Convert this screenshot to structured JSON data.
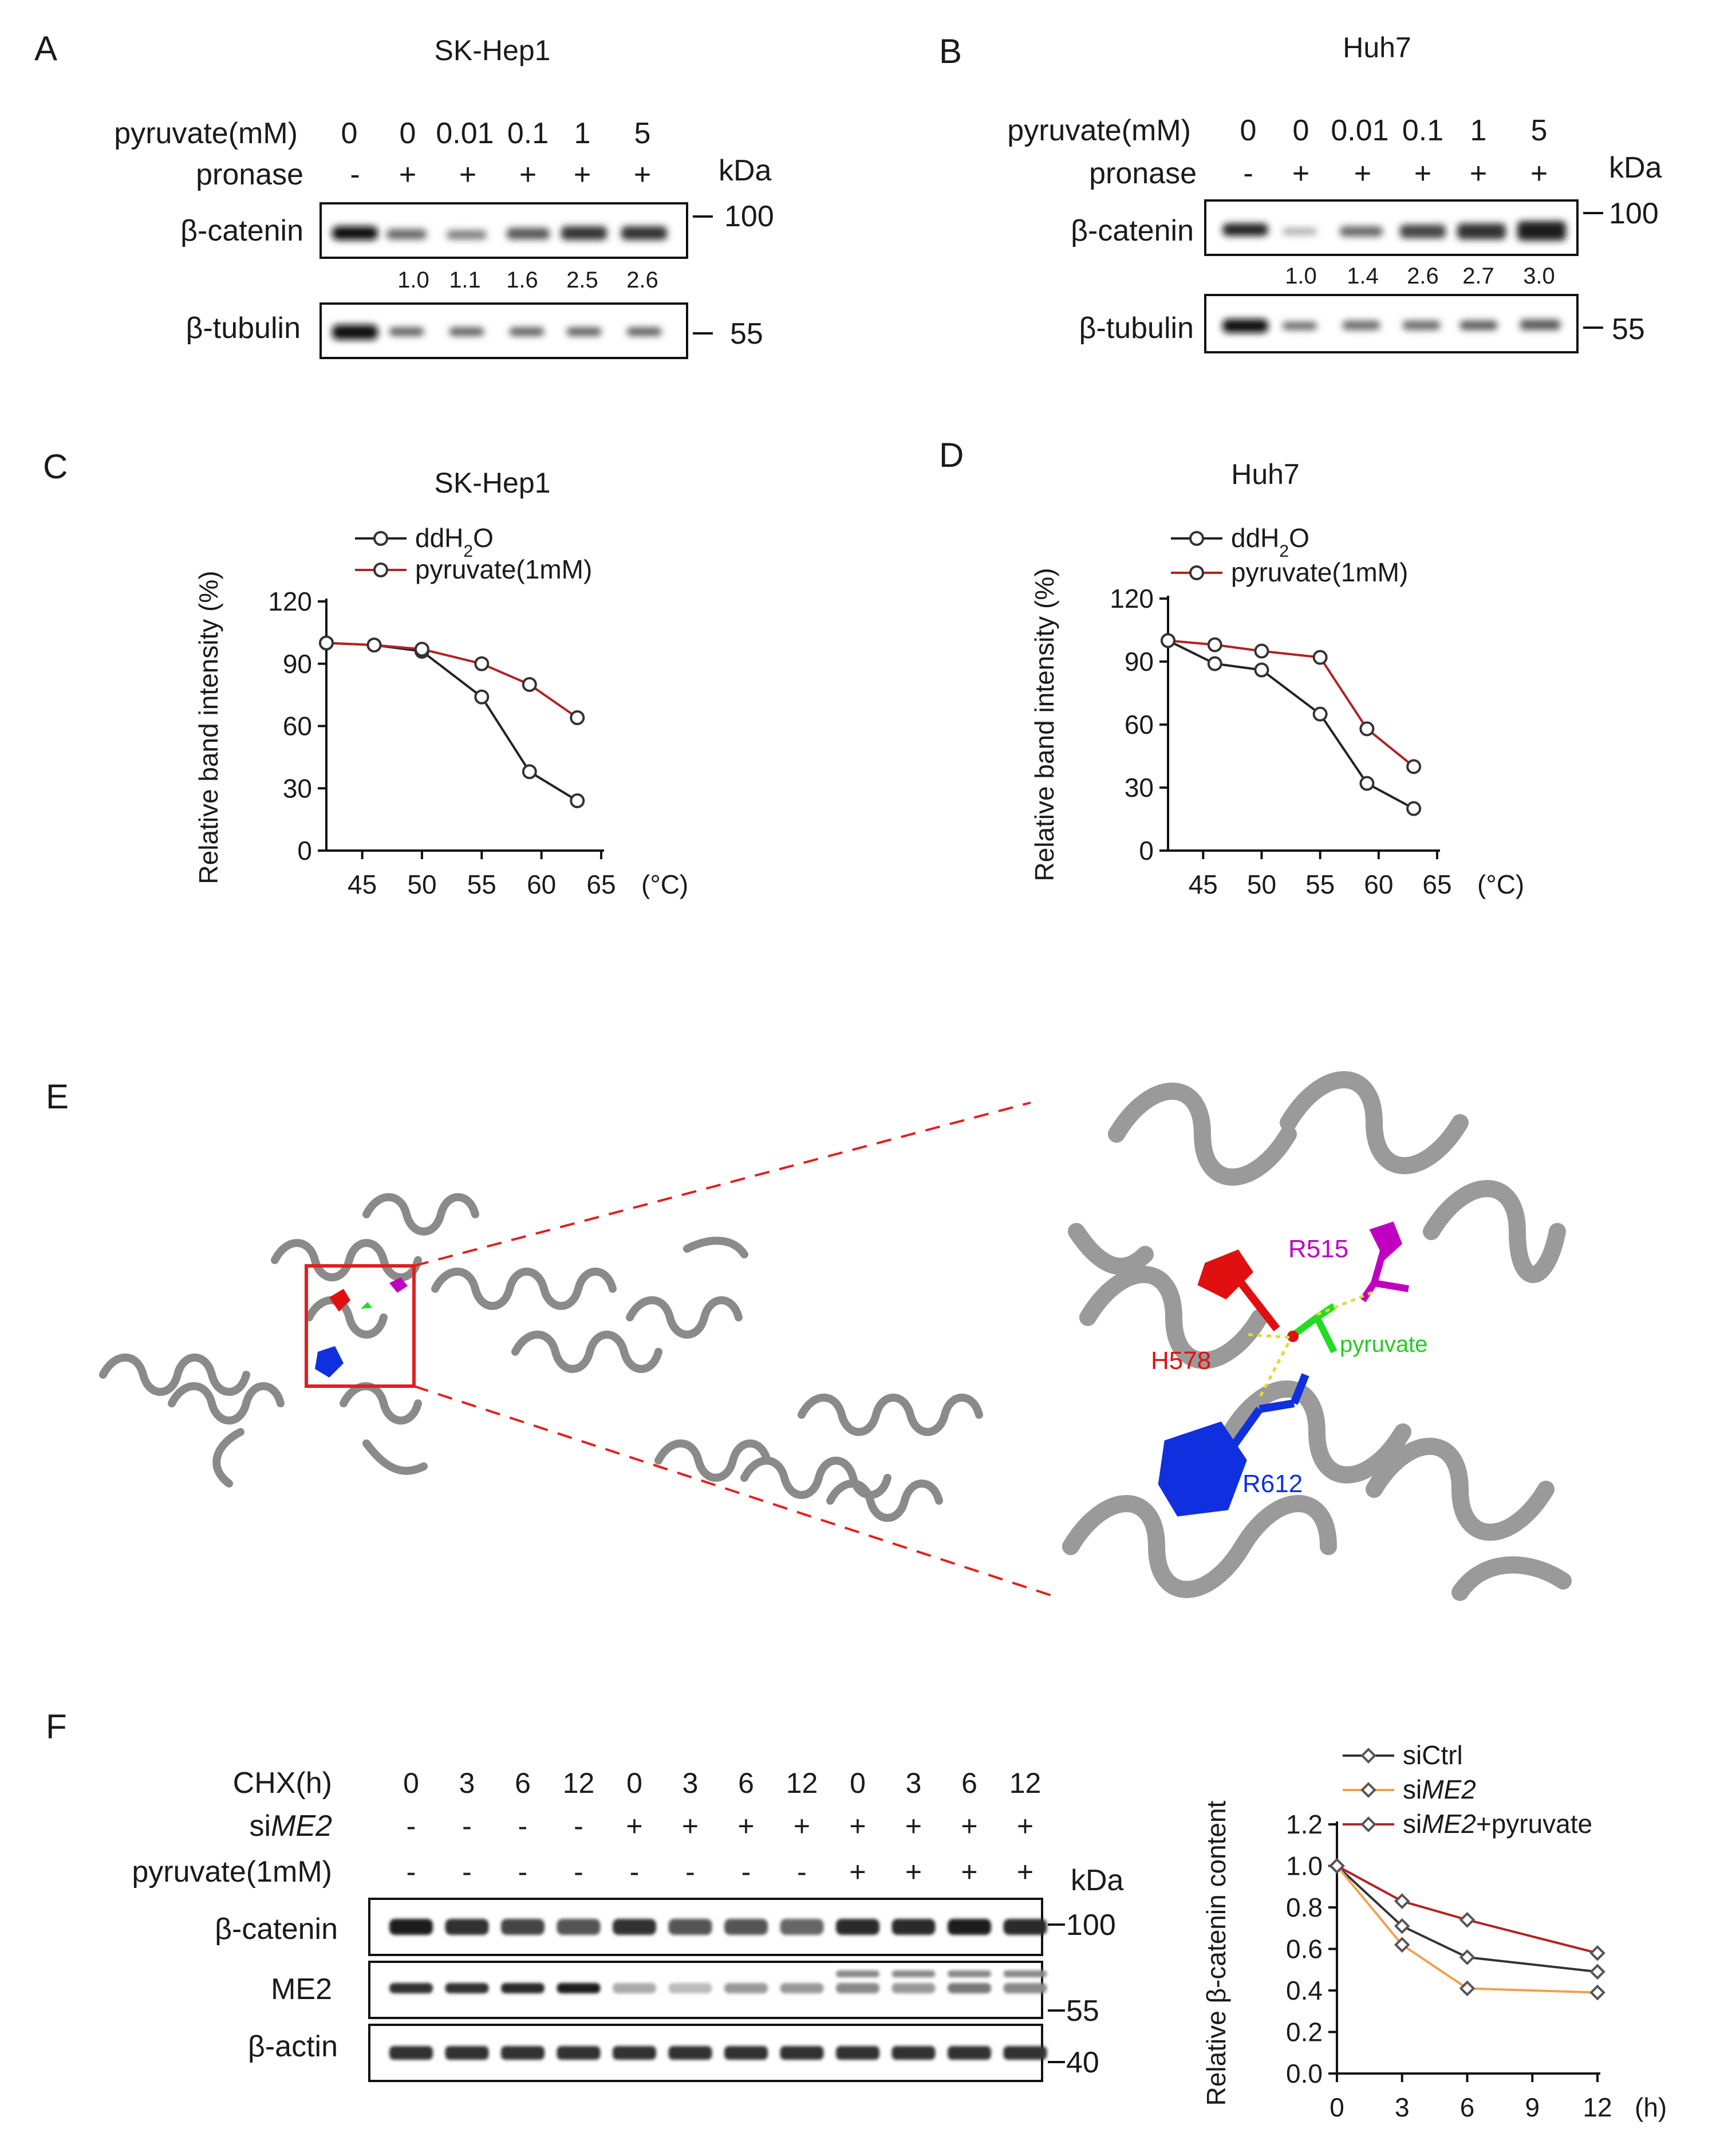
{
  "panels": {
    "A": {
      "letter": "A",
      "title": "SK-Hep1",
      "row_labels": [
        "pyruvate(mM)",
        "pronase"
      ],
      "pyruvate_values": [
        "0",
        "0",
        "0.01",
        "0.1",
        "1",
        "5"
      ],
      "pronase_values": [
        "-",
        "+",
        "+",
        "+",
        "+",
        "+"
      ],
      "kda": "kDa",
      "blots": [
        "β-catenin",
        "β-tubulin"
      ],
      "quant": [
        "1.0",
        "1.1",
        "1.6",
        "2.5",
        "2.6"
      ],
      "markers": [
        "100",
        "55"
      ]
    },
    "B": {
      "letter": "B",
      "title": "Huh7",
      "row_labels": [
        "pyruvate(mM)",
        "pronase"
      ],
      "pyruvate_values": [
        "0",
        "0",
        "0.01",
        "0.1",
        "1",
        "5"
      ],
      "pronase_values": [
        "-",
        "+",
        "+",
        "+",
        "+",
        "+"
      ],
      "kda": "kDa",
      "blots": [
        "β-catenin",
        "β-tubulin"
      ],
      "quant": [
        "1.0",
        "1.4",
        "2.6",
        "2.7",
        "3.0"
      ],
      "markers": [
        "100",
        "55"
      ]
    },
    "C": {
      "letter": "C",
      "title": "SK-Hep1"
    },
    "D": {
      "letter": "D",
      "title": "Huh7"
    },
    "E": {
      "letter": "E",
      "residues": [
        "R515",
        "H578",
        "R612"
      ],
      "ligand": "pyruvate",
      "colors": {
        "R515": "#c000c0",
        "H578": "#e01010",
        "R612": "#1030e0",
        "pyruvate": "#22dd22",
        "zoom_box": "#e02020"
      }
    },
    "F": {
      "letter": "F",
      "row_labels": [
        "CHX(h)",
        "siME2",
        "pyruvate(1mM)"
      ],
      "chx_values": [
        "0",
        "3",
        "6",
        "12",
        "0",
        "3",
        "6",
        "12",
        "0",
        "3",
        "6",
        "12"
      ],
      "sime2_values": [
        "-",
        "-",
        "-",
        "-",
        "+",
        "+",
        "+",
        "+",
        "+",
        "+",
        "+",
        "+"
      ],
      "pyr_values": [
        "-",
        "-",
        "-",
        "-",
        "-",
        "-",
        "-",
        "-",
        "+",
        "+",
        "+",
        "+"
      ],
      "kda": "kDa",
      "blots": [
        "β-catenin",
        "ME2",
        "β-actin"
      ],
      "markers": [
        "100",
        "55",
        "40"
      ]
    }
  },
  "chart_data": [
    {
      "id": "C",
      "type": "line",
      "title": "SK-Hep1",
      "xlabel": "(°C)",
      "ylabel": "Relative band intensity (%)",
      "xlim": [
        42,
        65
      ],
      "ylim": [
        0,
        120
      ],
      "xticks": [
        45,
        50,
        55,
        60,
        65
      ],
      "yticks": [
        0,
        30,
        60,
        90,
        120
      ],
      "legend_position": "top",
      "series": [
        {
          "name": "ddH2O",
          "color": "#222222",
          "x": [
            42,
            46,
            50,
            55,
            59,
            63
          ],
          "y": [
            100,
            99,
            96,
            74,
            38,
            24
          ]
        },
        {
          "name": "pyruvate(1mM)",
          "color": "#b22222",
          "x": [
            42,
            46,
            50,
            55,
            59,
            63
          ],
          "y": [
            100,
            99,
            97,
            90,
            80,
            64
          ]
        }
      ]
    },
    {
      "id": "D",
      "type": "line",
      "title": "Huh7",
      "xlabel": "(°C)",
      "ylabel": "Relative band intensity (%)",
      "xlim": [
        42,
        65
      ],
      "ylim": [
        0,
        120
      ],
      "xticks": [
        45,
        50,
        55,
        60,
        65
      ],
      "yticks": [
        0,
        30,
        60,
        90,
        120
      ],
      "legend_position": "top",
      "series": [
        {
          "name": "ddH2O",
          "color": "#222222",
          "x": [
            42,
            46,
            50,
            55,
            59,
            63
          ],
          "y": [
            100,
            89,
            86,
            65,
            32,
            20
          ]
        },
        {
          "name": "pyruvate(1mM)",
          "color": "#b22222",
          "x": [
            42,
            46,
            50,
            55,
            59,
            63
          ],
          "y": [
            100,
            98,
            95,
            92,
            58,
            40
          ]
        }
      ]
    },
    {
      "id": "F",
      "type": "line",
      "title": "",
      "xlabel": "(h)",
      "ylabel": "Relative β-catenin content",
      "xlim": [
        0,
        12
      ],
      "ylim": [
        0,
        1.2
      ],
      "xticks": [
        0,
        3,
        6,
        9,
        12
      ],
      "yticks": [
        "0.0",
        "0.2",
        "0.4",
        "0.6",
        "0.8",
        "1.0",
        "1.2"
      ],
      "legend_position": "top-right",
      "series": [
        {
          "name": "siCtrl",
          "color": "#333333",
          "x": [
            0,
            3,
            6,
            12
          ],
          "y": [
            1.0,
            0.71,
            0.56,
            0.49
          ]
        },
        {
          "name": "siME2",
          "color": "#f0a050",
          "x": [
            0,
            3,
            6,
            12
          ],
          "y": [
            1.0,
            0.62,
            0.41,
            0.39
          ]
        },
        {
          "name": "siME2+pyruvate",
          "color": "#b22222",
          "x": [
            0,
            3,
            6,
            12
          ],
          "y": [
            1.0,
            0.83,
            0.74,
            0.58
          ]
        }
      ]
    }
  ]
}
